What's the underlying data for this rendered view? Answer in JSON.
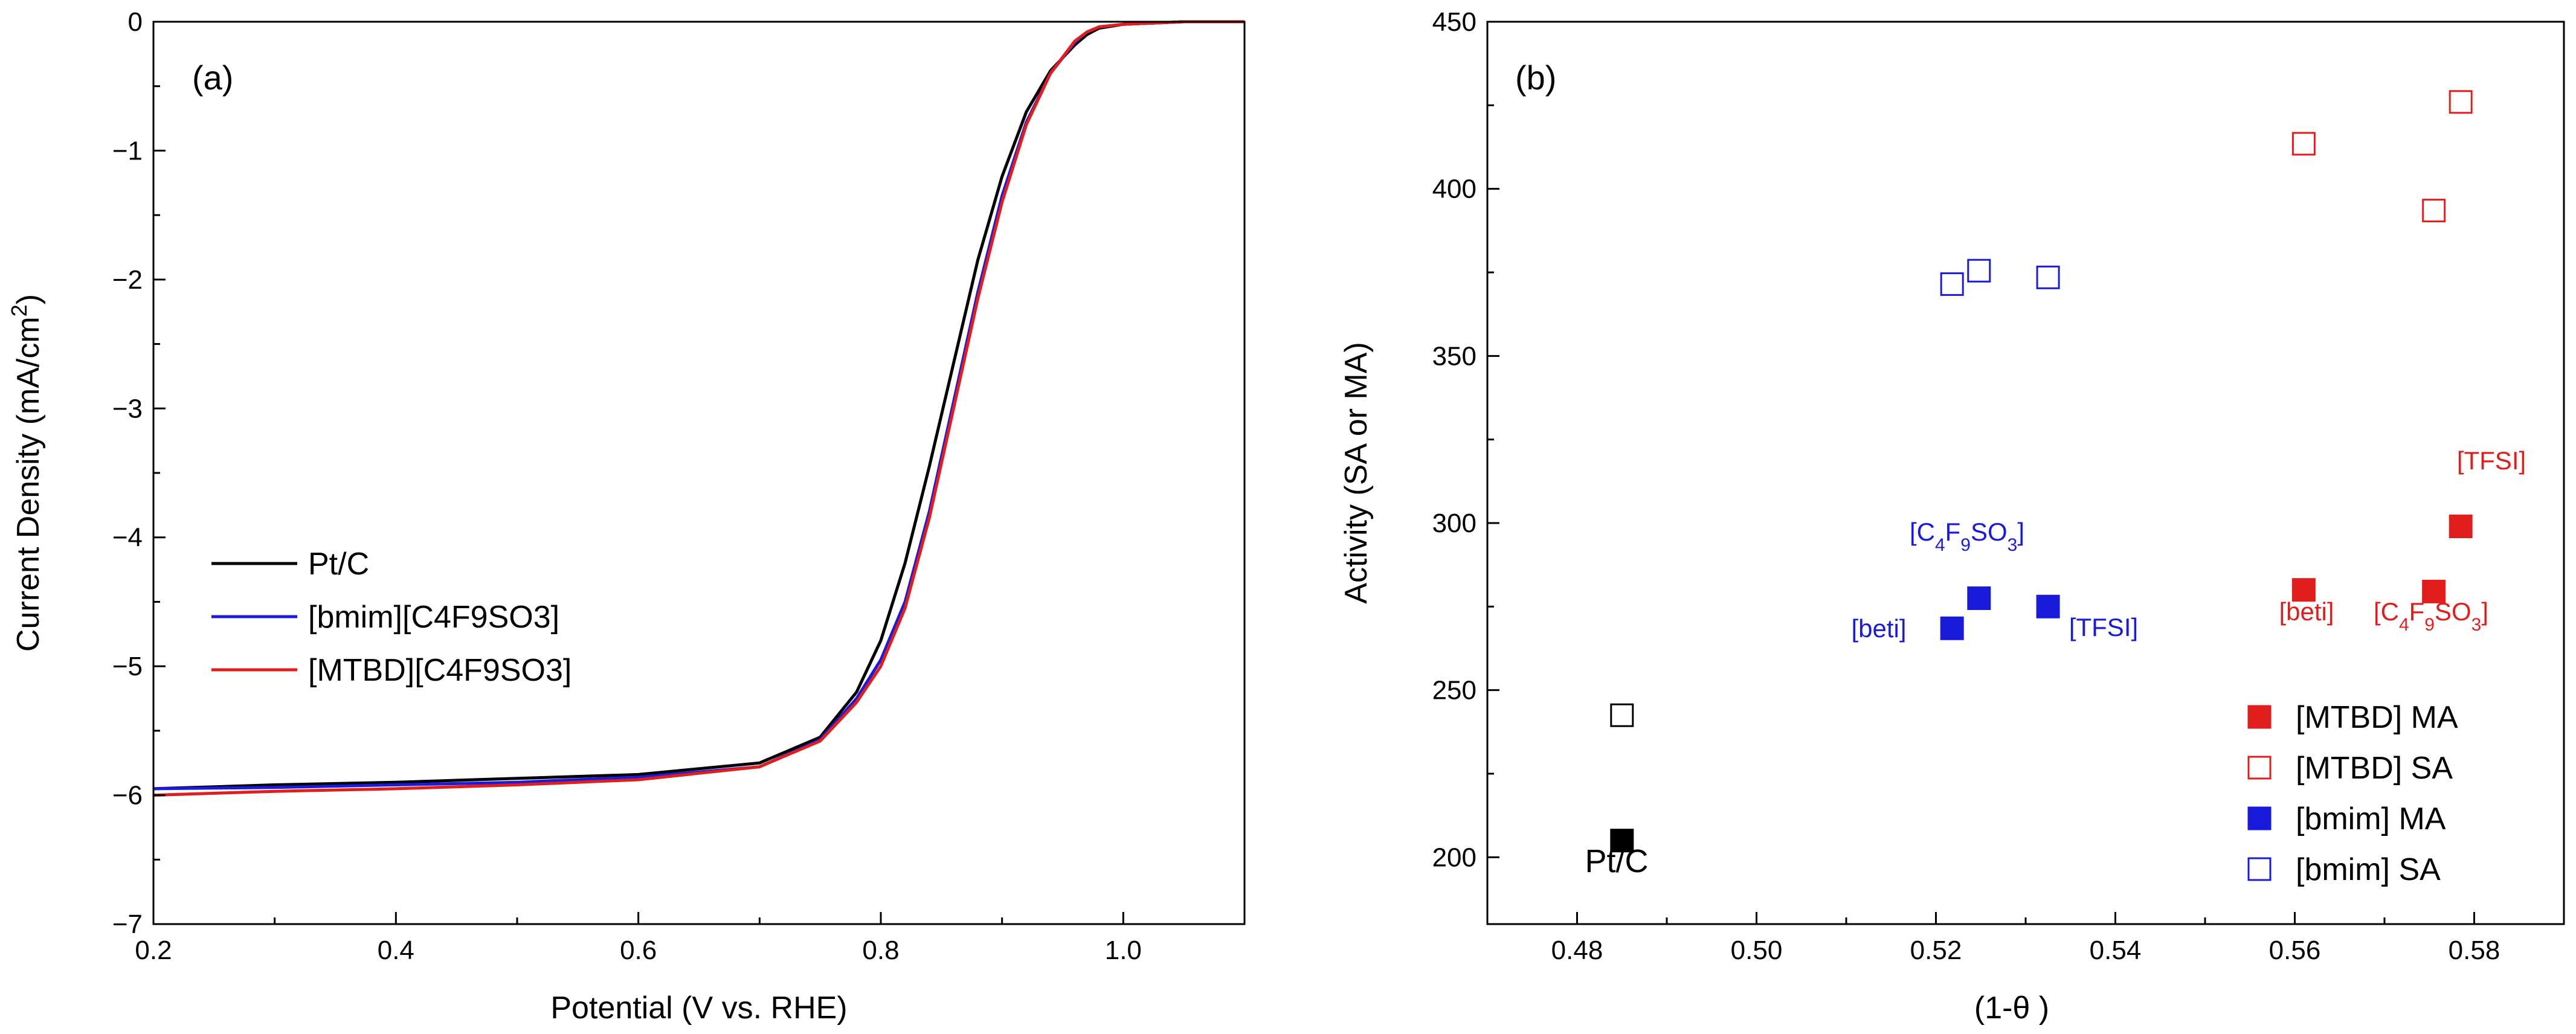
{
  "chart_data": [
    {
      "panel": "(a)",
      "type": "line",
      "xlabel": "Potential (V vs. RHE)",
      "ylabel": "Current Density (mA/cm",
      "ylabel_sup": "2",
      "ylabel_end": ")",
      "xlim": [
        0.2,
        1.1
      ],
      "ylim": [
        -7,
        0
      ],
      "xticks": [
        0.2,
        0.4,
        0.6,
        0.8,
        1.0
      ],
      "xtick_labels": [
        "0.2",
        "0.4",
        "0.6",
        "0.8",
        "1.0"
      ],
      "yticks": [
        0,
        -1,
        -2,
        -3,
        -4,
        -5,
        -6,
        -7
      ],
      "ytick_labels": [
        "0",
        "−1",
        "−2",
        "−3",
        "−4",
        "−5",
        "−6",
        "−7"
      ],
      "series": [
        {
          "name": "Pt/C",
          "color": "#000000",
          "x": [
            0.2,
            0.3,
            0.4,
            0.5,
            0.6,
            0.7,
            0.75,
            0.78,
            0.8,
            0.82,
            0.84,
            0.86,
            0.88,
            0.9,
            0.92,
            0.94,
            0.96,
            0.97,
            0.98,
            1.0,
            1.05,
            1.1
          ],
          "y": [
            -5.95,
            -5.92,
            -5.9,
            -5.87,
            -5.84,
            -5.75,
            -5.55,
            -5.2,
            -4.8,
            -4.2,
            -3.45,
            -2.65,
            -1.85,
            -1.2,
            -0.7,
            -0.38,
            -0.18,
            -0.1,
            -0.05,
            -0.02,
            0,
            0
          ]
        },
        {
          "name": "[bmim][C4F9SO3]",
          "color": "#1a1adb",
          "x": [
            0.2,
            0.3,
            0.4,
            0.5,
            0.6,
            0.7,
            0.75,
            0.78,
            0.8,
            0.82,
            0.84,
            0.86,
            0.88,
            0.9,
            0.92,
            0.94,
            0.96,
            0.97,
            0.98,
            1.0,
            1.05,
            1.1
          ],
          "y": [
            -5.95,
            -5.94,
            -5.92,
            -5.9,
            -5.86,
            -5.78,
            -5.57,
            -5.25,
            -4.95,
            -4.5,
            -3.8,
            -2.95,
            -2.1,
            -1.35,
            -0.78,
            -0.4,
            -0.16,
            -0.08,
            -0.04,
            -0.02,
            0,
            0
          ]
        },
        {
          "name": "[MTBD][C4F9SO3]",
          "color": "#e01e1e",
          "x": [
            0.2,
            0.3,
            0.4,
            0.5,
            0.6,
            0.7,
            0.75,
            0.78,
            0.8,
            0.82,
            0.84,
            0.86,
            0.88,
            0.9,
            0.92,
            0.94,
            0.96,
            0.97,
            0.98,
            1.0,
            1.05,
            1.1
          ],
          "y": [
            -6.0,
            -5.97,
            -5.95,
            -5.92,
            -5.88,
            -5.78,
            -5.58,
            -5.28,
            -5.0,
            -4.55,
            -3.85,
            -3.0,
            -2.15,
            -1.4,
            -0.8,
            -0.4,
            -0.15,
            -0.08,
            -0.04,
            -0.02,
            0,
            0
          ]
        }
      ],
      "legend": [
        "Pt/C",
        "[bmim][C4F9SO3]",
        "[MTBD][C4F9SO3]"
      ],
      "legend_position": "lower-left"
    },
    {
      "panel": "(b)",
      "type": "scatter",
      "xlabel": "(1-θ )",
      "ylabel": "Activity (SA or MA)",
      "xlim": [
        0.47,
        0.59
      ],
      "ylim": [
        180,
        450
      ],
      "xticks": [
        0.48,
        0.5,
        0.52,
        0.54,
        0.56,
        0.58
      ],
      "xtick_labels": [
        "0.48",
        "0.50",
        "0.52",
        "0.54",
        "0.56",
        "0.58"
      ],
      "yticks": [
        200,
        250,
        300,
        350,
        400,
        450
      ],
      "ytick_labels": [
        "200",
        "250",
        "300",
        "350",
        "400",
        "450"
      ],
      "series": [
        {
          "name": "[MTBD] MA",
          "color": "#e01e1e",
          "filled": true,
          "points": [
            {
              "x": 0.561,
              "y": 280
            },
            {
              "x": 0.5755,
              "y": 279.5
            },
            {
              "x": 0.5785,
              "y": 299
            }
          ]
        },
        {
          "name": "[MTBD] SA",
          "color": "#e01e1e",
          "filled": false,
          "points": [
            {
              "x": 0.561,
              "y": 413.5
            },
            {
              "x": 0.5755,
              "y": 393.5
            },
            {
              "x": 0.5785,
              "y": 426
            }
          ]
        },
        {
          "name": "[bmim] MA",
          "color": "#1a1adb",
          "filled": true,
          "points": [
            {
              "x": 0.5218,
              "y": 268.5
            },
            {
              "x": 0.5248,
              "y": 277.5
            },
            {
              "x": 0.5325,
              "y": 275
            }
          ]
        },
        {
          "name": "[bmim] SA",
          "color": "#1a1adb",
          "filled": false,
          "points": [
            {
              "x": 0.5218,
              "y": 371.5
            },
            {
              "x": 0.5248,
              "y": 375.5
            },
            {
              "x": 0.5325,
              "y": 373.5
            }
          ]
        },
        {
          "name": "Pt/C MA",
          "color": "#000000",
          "filled": true,
          "in_legend": false,
          "points": [
            {
              "x": 0.485,
              "y": 205
            }
          ]
        },
        {
          "name": "Pt/C SA",
          "color": "#000000",
          "filled": false,
          "in_legend": false,
          "points": [
            {
              "x": 0.485,
              "y": 242.5
            }
          ]
        }
      ],
      "legend": [
        "[MTBD] MA",
        "[MTBD] SA",
        "[bmim] MA",
        "[bmim] SA"
      ],
      "legend_position": "lower-right"
    }
  ],
  "annotations_b": {
    "ptc": "Pt/C",
    "beti_blue": "[beti]",
    "c4f9so3_blue": {
      "pre": "[C",
      "s1": "4",
      "mid1": "F",
      "s2": "9",
      "mid2": "SO",
      "s3": "3",
      "post": "]"
    },
    "tfsi_blue": "[TFSI]",
    "beti_red": "[beti]",
    "c4f9so3_red": {
      "pre": "[C",
      "s1": "4",
      "mid1": "F",
      "s2": "9",
      "mid2": "SO",
      "s3": "3",
      "post": "]"
    },
    "tfsi_red": "[TFSI]"
  }
}
